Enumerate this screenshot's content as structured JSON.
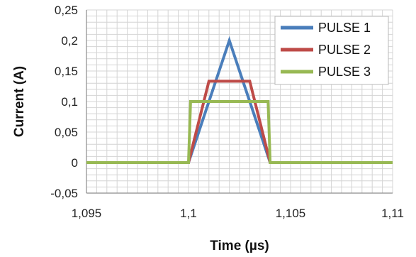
{
  "chart_data": {
    "type": "line",
    "title": "",
    "xlabel": "Time (µs)",
    "ylabel": "Current (A)",
    "xlim": [
      1.095,
      1.11
    ],
    "ylim": [
      -0.05,
      0.25
    ],
    "x_ticks": [
      "1,095",
      "1,1",
      "1,105",
      "1,11"
    ],
    "x_tick_values": [
      1.095,
      1.1,
      1.105,
      1.11
    ],
    "y_ticks": [
      "0,25",
      "0,2",
      "0,15",
      "0,1",
      "0,05",
      "0",
      "-0,05"
    ],
    "y_tick_values": [
      0.25,
      0.2,
      0.15,
      0.1,
      0.05,
      0,
      -0.05
    ],
    "grid": true,
    "legend_position": "top-right",
    "series": [
      {
        "name": "PULSE 1",
        "color": "#4a7ebb",
        "x": [
          1.095,
          1.1,
          1.102,
          1.104,
          1.11
        ],
        "y": [
          0,
          0,
          0.2,
          0,
          0
        ]
      },
      {
        "name": "PULSE 2",
        "color": "#be4b48",
        "x": [
          1.095,
          1.1,
          1.101,
          1.103,
          1.104,
          1.11
        ],
        "y": [
          0,
          0,
          0.1333,
          0.1333,
          0,
          0
        ]
      },
      {
        "name": "PULSE 3",
        "color": "#98b954",
        "x": [
          1.095,
          1.1,
          1.1001,
          1.1039,
          1.104,
          1.11
        ],
        "y": [
          0,
          0,
          0.1,
          0.1,
          0,
          0
        ]
      }
    ]
  }
}
